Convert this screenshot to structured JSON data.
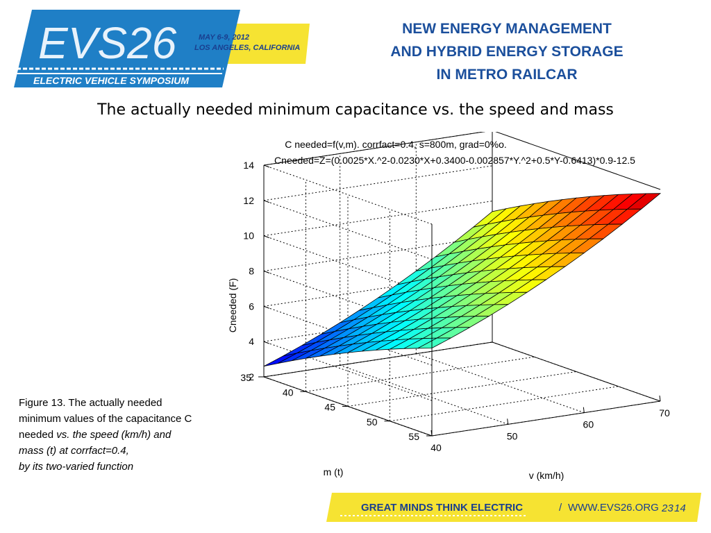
{
  "logo": {
    "text": "EVS26",
    "dates": "MAY 6-9, 2012",
    "location": "LOS ANGELES, CALIFORNIA",
    "tagline": "ELECTRIC VEHICLE SYMPOSIUM"
  },
  "header": {
    "title_lines": [
      "NEW ENERGY MANAGEMENT",
      "AND  HYBRID ENERGY STORAGE",
      "IN METRO RAILCAR"
    ]
  },
  "subtitle": "The actually needed minimum capacitance vs. the speed and mass",
  "caption": {
    "line1": "Figure 13. The actually needed",
    "line2": "minimum values of the capacitance C",
    "line3_plain": "needed ",
    "line3_italic": "vs. the speed (km/h) and",
    "line4": "mass (t) at corrfact=0.4,",
    "line5": "by its two-varied function"
  },
  "footer": {
    "slogan": "GREAT MINDS THINK ELECTRIC",
    "separator": "/",
    "url": "WWW.EVS26.ORG",
    "page_number": "23",
    "page_total": "14"
  },
  "chart_data": {
    "type": "surface",
    "title_line1": "C needed=f(v,m). corrfact=0.4, s=800m, grad=0%o.",
    "title_line2": "Cneeded=Z=(0.0025*X.^2-0.0230*X+0.3400-0.002857*Y.^2+0.5*Y-0.6413)*0.9-12.5",
    "xlabel": "v (km/h)",
    "ylabel": "m (t)",
    "zlabel": "Cneeded (F)",
    "x_ticks": [
      "40",
      "50",
      "60",
      "70"
    ],
    "y_ticks": [
      "35",
      "40",
      "45",
      "50",
      "55"
    ],
    "z_ticks": [
      "2",
      "4",
      "6",
      "8",
      "10",
      "12",
      "14"
    ],
    "xlim": [
      40,
      70
    ],
    "ylim": [
      35,
      55
    ],
    "zlim": [
      2,
      14
    ],
    "grid": true,
    "colormap": "jet",
    "x_grid_count": 13,
    "y_grid_count": 13
  }
}
